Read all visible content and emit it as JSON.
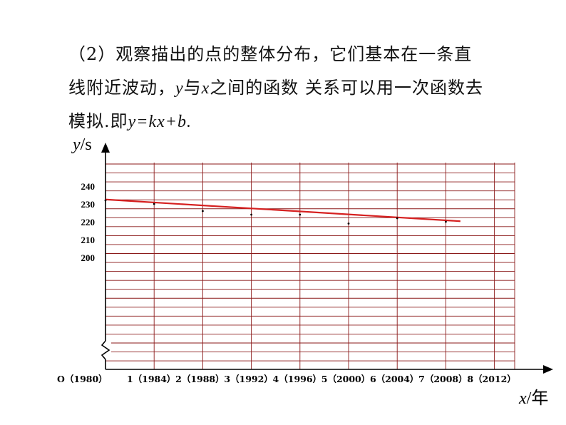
{
  "text": {
    "line1": "（2）观察描出的点的整体分布，它们基本在一条直",
    "line2_pre": "线附近波动，",
    "line2_y": "y",
    "line2_mid": "与",
    "line2_x": "x",
    "line2_post": "之间的函数 关系可以用一次函数去",
    "line3_pre": "模拟.即",
    "line3_eq": "y=kx+b."
  },
  "chart_data": {
    "type": "scatter",
    "title": "",
    "xlabel_var": "x",
    "xlabel_unit": "/年",
    "ylabel_var": "y",
    "ylabel_unit": "/s",
    "x_ticks": [
      {
        "value": 0,
        "label": "O（1980）"
      },
      {
        "value": 1,
        "label": "1（1984）"
      },
      {
        "value": 2,
        "label": "2（1988）"
      },
      {
        "value": 3,
        "label": "3（1992）"
      },
      {
        "value": 4,
        "label": "4（1996）"
      },
      {
        "value": 5,
        "label": "5（2000）"
      },
      {
        "value": 6,
        "label": "6（2004）"
      },
      {
        "value": 7,
        "label": "7（2008）"
      },
      {
        "value": 8,
        "label": "8（2012）"
      }
    ],
    "y_ticks": [
      200,
      210,
      220,
      230,
      240
    ],
    "xlim": [
      0,
      8
    ],
    "y_break": true,
    "grid": true,
    "points": [
      {
        "x": 0,
        "y": 232
      },
      {
        "x": 1,
        "y": 230
      },
      {
        "x": 2,
        "y": 226
      },
      {
        "x": 3,
        "y": 224
      },
      {
        "x": 4,
        "y": 224
      },
      {
        "x": 5,
        "y": 219
      },
      {
        "x": 6,
        "y": 222
      },
      {
        "x": 7,
        "y": 220
      }
    ],
    "fit_line": {
      "x": [
        0,
        7.3
      ],
      "y": [
        232.5,
        220.3
      ],
      "color": "#d62020"
    },
    "colors": {
      "grid": "#8b1a1a",
      "axis": "#000000",
      "point": "#000000"
    }
  }
}
